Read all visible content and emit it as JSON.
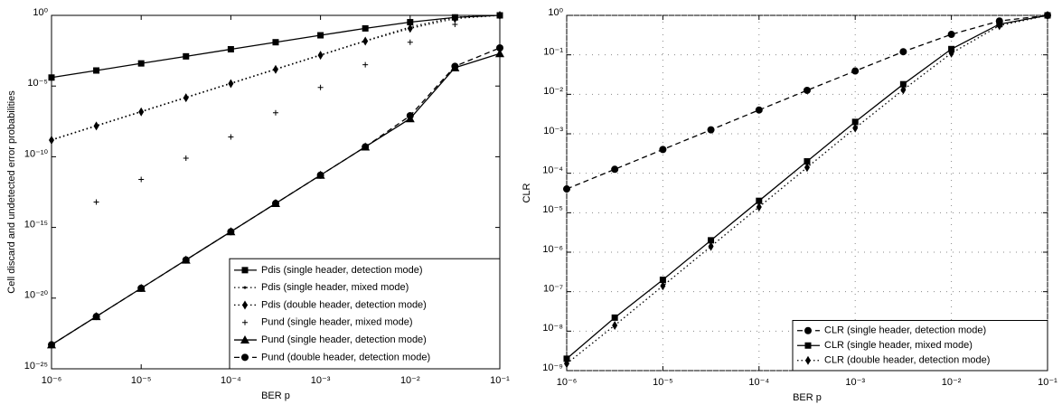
{
  "chart_data": [
    {
      "type": "line",
      "xlabel": "BER  p",
      "ylabel": "Cell discard and undetected error probabilities",
      "xlog": true,
      "ylog": true,
      "grid": false,
      "legend": "lower right",
      "xlim": [
        1e-06,
        0.1
      ],
      "ylim": [
        1e-25,
        1
      ],
      "xticks": [
        {
          "value": 1e-06,
          "label": "10⁻⁶"
        },
        {
          "value": 1e-05,
          "label": "10⁻⁵"
        },
        {
          "value": 0.0001,
          "label": "10⁻⁴"
        },
        {
          "value": 0.001,
          "label": "10⁻³"
        },
        {
          "value": 0.01,
          "label": "10⁻²"
        },
        {
          "value": 0.1,
          "label": "10⁻¹"
        }
      ],
      "yticks": [
        {
          "value": 1,
          "label": "10⁰"
        },
        {
          "value": 1e-05,
          "label": "10⁻⁵"
        },
        {
          "value": 1e-10,
          "label": "10⁻¹⁰"
        },
        {
          "value": 1e-15,
          "label": "10⁻¹⁵"
        },
        {
          "value": 1e-20,
          "label": "10⁻²⁰"
        },
        {
          "value": 1e-25,
          "label": "10⁻²⁵"
        }
      ],
      "x": [
        1e-06,
        3.16e-06,
        1e-05,
        3.16e-05,
        0.0001,
        0.000316,
        0.001,
        0.00316,
        0.01,
        0.0316,
        0.1
      ],
      "series": [
        {
          "name": "Pdis (single header, detection mode)",
          "color": "#000000",
          "marker": "square",
          "line": "solid",
          "values": [
            4e-05,
            0.000126,
            0.0004,
            0.00126,
            0.004,
            0.0126,
            0.039,
            0.12,
            0.33,
            0.72,
            1
          ]
        },
        {
          "name": "Pdis (single header, mixed mode)",
          "color": "#000000",
          "marker": "dot",
          "line": "dotted",
          "values": [
            1.6e-09,
            1.6e-08,
            1.6e-07,
            1.6e-06,
            1.6e-05,
            0.00016,
            0.0016,
            0.016,
            0.15,
            0.75,
            1
          ]
        },
        {
          "name": "Pdis (double header, detection mode)",
          "color": "#000000",
          "marker": "diamond",
          "line": "dotted",
          "values": [
            1.5e-09,
            1.5e-08,
            1.5e-07,
            1.5e-06,
            1.5e-05,
            0.00015,
            0.0015,
            0.015,
            0.12,
            0.6,
            1
          ]
        },
        {
          "name": "Pund (single header, mixed mode)",
          "color": "#000000",
          "marker": "plus",
          "line": "none",
          "values": [
            null,
            6.3e-14,
            2.5e-12,
            7.9e-11,
            2.5e-09,
            1.3e-07,
            7.9e-06,
            0.00032,
            0.0126,
            0.23,
            0.8
          ]
        },
        {
          "name": "Pund (single header, detection mode)",
          "color": "#000000",
          "marker": "triangle",
          "line": "solid",
          "values": [
            5e-24,
            5e-22,
            5e-20,
            5e-18,
            5e-16,
            5e-14,
            5e-12,
            5e-10,
            5e-08,
            0.0002,
            0.002
          ]
        },
        {
          "name": "Pund (double header, detection mode)",
          "color": "#000000",
          "marker": "circle",
          "line": "dashed",
          "values": [
            5e-24,
            5e-22,
            5e-20,
            5e-18,
            5e-16,
            5e-14,
            5e-12,
            5e-10,
            8e-08,
            0.00025,
            0.005
          ]
        }
      ]
    },
    {
      "type": "line",
      "xlabel": "BER  p",
      "ylabel": "CLR",
      "xlog": true,
      "ylog": true,
      "grid": true,
      "legend": "lower right",
      "xlim": [
        1e-06,
        0.1
      ],
      "ylim": [
        1e-09,
        1
      ],
      "xticks": [
        {
          "value": 1e-06,
          "label": "10⁻⁶"
        },
        {
          "value": 1e-05,
          "label": "10⁻⁵"
        },
        {
          "value": 0.0001,
          "label": "10⁻⁴"
        },
        {
          "value": 0.001,
          "label": "10⁻³"
        },
        {
          "value": 0.01,
          "label": "10⁻²"
        },
        {
          "value": 0.1,
          "label": "10⁻¹"
        }
      ],
      "yticks": [
        {
          "value": 1,
          "label": "10⁰"
        },
        {
          "value": 0.1,
          "label": "10⁻¹"
        },
        {
          "value": 0.01,
          "label": "10⁻²"
        },
        {
          "value": 0.001,
          "label": "10⁻³"
        },
        {
          "value": 0.0001,
          "label": "10⁻⁴"
        },
        {
          "value": 1e-05,
          "label": "10⁻⁵"
        },
        {
          "value": 1e-06,
          "label": "10⁻⁶"
        },
        {
          "value": 1e-07,
          "label": "10⁻⁷"
        },
        {
          "value": 1e-08,
          "label": "10⁻⁸"
        },
        {
          "value": 1e-09,
          "label": "10⁻⁹"
        }
      ],
      "x": [
        1e-06,
        3.16e-06,
        1e-05,
        3.16e-05,
        0.0001,
        0.000316,
        0.001,
        0.00316,
        0.01,
        0.0316,
        0.1
      ],
      "series": [
        {
          "name": "CLR (single header, detection mode)",
          "color": "#000000",
          "marker": "circle",
          "line": "dashed",
          "values": [
            4e-05,
            0.000126,
            0.0004,
            0.00126,
            0.004,
            0.0126,
            0.039,
            0.12,
            0.33,
            0.72,
            1
          ]
        },
        {
          "name": "CLR (single header, mixed mode)",
          "color": "#000000",
          "marker": "square",
          "line": "solid",
          "values": [
            2e-09,
            2.2e-08,
            2e-07,
            2e-06,
            2e-05,
            0.0002,
            0.002,
            0.018,
            0.14,
            0.6,
            1
          ]
        },
        {
          "name": "CLR (double header, detection mode)",
          "color": "#000000",
          "marker": "diamond",
          "line": "dotted",
          "values": [
            1.5e-09,
            1.4e-08,
            1.4e-07,
            1.4e-06,
            1.4e-05,
            0.00014,
            0.0014,
            0.013,
            0.11,
            0.55,
            1
          ]
        }
      ]
    }
  ]
}
